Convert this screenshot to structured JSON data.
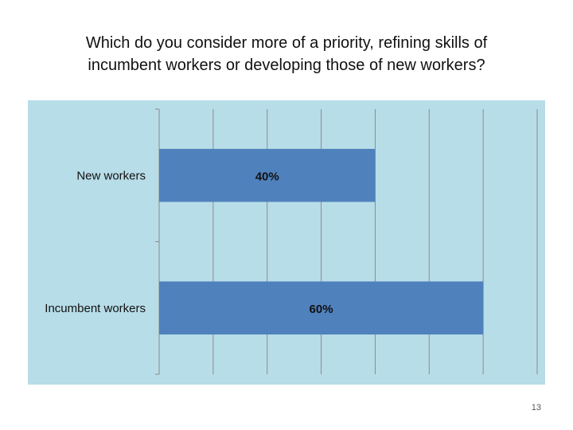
{
  "slide": {
    "title_lines": [
      "Which do you consider more of a priority, refining skills of",
      "incumbent workers or developing those of new workers?"
    ],
    "page_number": "13"
  },
  "colors": {
    "plot_background": "#b7dde8",
    "bar": "#4f81bd",
    "gridline": "#8c8c8c",
    "text": "#111111"
  },
  "chart_data": {
    "type": "bar",
    "orientation": "horizontal",
    "title": "",
    "xlabel": "",
    "ylabel": "",
    "categories": [
      "New workers",
      "Incumbent workers"
    ],
    "values": [
      40,
      60
    ],
    "data_labels": [
      "40%",
      "60%"
    ],
    "xlim": [
      0,
      70
    ],
    "grid": true,
    "legend": "none"
  }
}
